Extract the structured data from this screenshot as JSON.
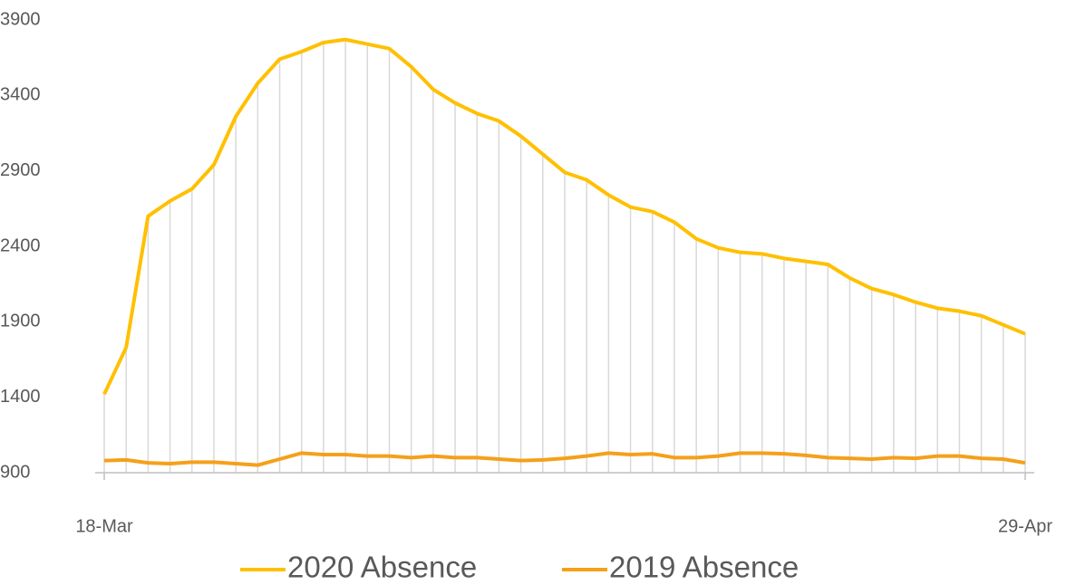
{
  "chart_data": {
    "type": "line",
    "categories": [
      "18-Mar",
      null,
      null,
      null,
      null,
      null,
      null,
      null,
      null,
      null,
      null,
      null,
      null,
      null,
      null,
      null,
      null,
      null,
      null,
      null,
      null,
      null,
      null,
      null,
      null,
      null,
      null,
      null,
      null,
      null,
      null,
      null,
      null,
      null,
      null,
      null,
      null,
      null,
      null,
      null,
      null,
      null,
      "29-Apr"
    ],
    "series": [
      {
        "name": "2020 Absence",
        "color": "#ffc000",
        "values": [
          1420,
          1730,
          2600,
          2700,
          2780,
          2940,
          3260,
          3480,
          3640,
          3690,
          3750,
          3770,
          3740,
          3710,
          3590,
          3440,
          3350,
          3280,
          3230,
          3130,
          3010,
          2890,
          2840,
          2740,
          2660,
          2630,
          2560,
          2450,
          2390,
          2360,
          2350,
          2320,
          2300,
          2280,
          2190,
          2120,
          2080,
          2030,
          1990,
          1970,
          1940,
          1880,
          1820
        ]
      },
      {
        "name": "2019 Absence",
        "color": "#f5a01a",
        "values": [
          980,
          985,
          965,
          960,
          970,
          970,
          960,
          950,
          990,
          1030,
          1020,
          1020,
          1010,
          1010,
          1000,
          1010,
          1000,
          1000,
          990,
          980,
          985,
          995,
          1010,
          1030,
          1020,
          1025,
          1000,
          1000,
          1010,
          1030,
          1030,
          1025,
          1015,
          1000,
          995,
          990,
          1000,
          995,
          1010,
          1010,
          995,
          990,
          965
        ]
      }
    ],
    "ylim": [
      900,
      3900
    ],
    "yticks": [
      900,
      1400,
      1900,
      2400,
      2900,
      3400,
      3900
    ],
    "drop_lines": true,
    "legend": "bottom"
  }
}
